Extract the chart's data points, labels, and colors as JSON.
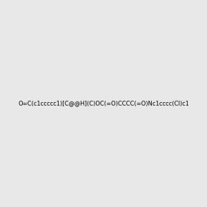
{
  "smiles": "O=C(c1ccccc1)[C@@H](C)OC(=O)CCCC(=O)Nc1cccc(Cl)c1",
  "image_size": 300,
  "background_color": "#e8e8e8"
}
